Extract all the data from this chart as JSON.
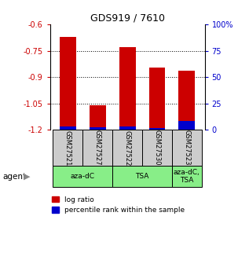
{
  "title": "GDS919 / 7610",
  "samples": [
    "GSM27521",
    "GSM27527",
    "GSM27522",
    "GSM27530",
    "GSM27523"
  ],
  "log_ratios": [
    -0.67,
    -1.06,
    -0.73,
    -0.845,
    -0.865
  ],
  "percentile_ranks": [
    3.0,
    2.5,
    2.8,
    2.0,
    8.0
  ],
  "ylim_left": [
    -1.2,
    -0.6
  ],
  "ylim_right": [
    0,
    100
  ],
  "yticks_left": [
    -1.2,
    -1.05,
    -0.9,
    -0.75,
    -0.6
  ],
  "yticks_right": [
    0,
    25,
    50,
    75,
    100
  ],
  "ytick_labels_left": [
    "-1.2",
    "-1.05",
    "-0.9",
    "-0.75",
    "-0.6"
  ],
  "ytick_labels_right": [
    "0",
    "25",
    "50",
    "75",
    "100%"
  ],
  "gridline_y": [
    -1.05,
    -0.9,
    -0.75
  ],
  "bar_color_red": "#cc0000",
  "bar_color_blue": "#0000cc",
  "bar_width": 0.55,
  "agent_bg_color": "#88ee88",
  "sample_bg_color": "#cccccc",
  "left_tick_color": "#cc0000",
  "right_tick_color": "#0000cc",
  "legend_red_label": "log ratio",
  "legend_blue_label": "percentile rank within the sample",
  "bar_bottom": -1.2,
  "agent_regions": [
    {
      "label": "aza-dC",
      "xstart": -0.5,
      "xend": 1.5
    },
    {
      "label": "TSA",
      "xstart": 1.5,
      "xend": 3.5
    },
    {
      "label": "aza-dC,\nTSA",
      "xstart": 3.5,
      "xend": 4.5
    }
  ]
}
